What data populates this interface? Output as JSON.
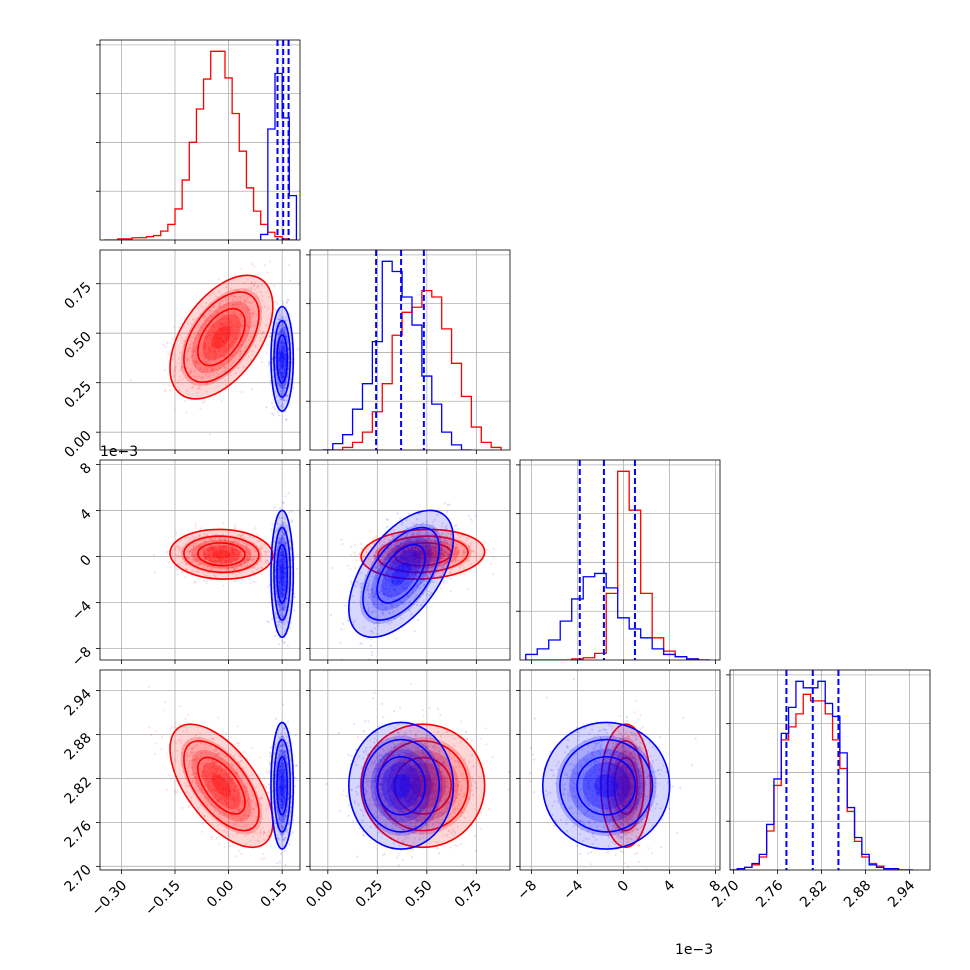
{
  "chart_data": {
    "type": "corner",
    "parameters": [
      "p0",
      "p1",
      "p2",
      "p3"
    ],
    "grid": true,
    "scale_labels": [
      "1e−3",
      "1e−3"
    ],
    "axes": {
      "p0": {
        "range": [
          -0.36,
          0.2
        ],
        "ticks": [
          -0.3,
          -0.15,
          0.0,
          0.15
        ],
        "tick_labels": [
          "−0.30",
          "−0.15",
          "0.00",
          "0.15"
        ]
      },
      "p1": {
        "range": [
          -0.09,
          0.92
        ],
        "ticks": [
          0.0,
          0.25,
          0.5,
          0.75
        ],
        "tick_labels": [
          "0.00",
          "0.25",
          "0.50",
          "0.75"
        ]
      },
      "p2": {
        "range": [
          -9.0,
          8.4
        ],
        "ticks": [
          -8,
          -4,
          0,
          4,
          8
        ],
        "tick_labels": [
          "−8",
          "−4",
          "0",
          "4",
          "8"
        ]
      },
      "p3": {
        "range": [
          2.695,
          2.968
        ],
        "ticks": [
          2.7,
          2.76,
          2.82,
          2.88,
          2.94
        ],
        "tick_labels": [
          "2.70",
          "2.76",
          "2.82",
          "2.88",
          "2.94"
        ]
      }
    },
    "series": [
      {
        "name": "",
        "color": "#ff0000",
        "means": [
          -0.02,
          0.48,
          0.2,
          2.81
        ],
        "stds": [
          0.06,
          0.13,
          0.9,
          0.035
        ],
        "correlations": {
          "p0_p1": 0.5,
          "p0_p2": -0.05,
          "p1_p2": 0.1,
          "p0_p3": -0.6,
          "p1_p3": 0.0,
          "p2_p3": 0.0
        },
        "histograms": {
          "p0": {
            "x": [
              -0.34,
              -0.32,
              -0.3,
              -0.28,
              -0.26,
              -0.24,
              -0.22,
              -0.2,
              -0.18,
              -0.16,
              -0.14,
              -0.12,
              -0.1,
              -0.08,
              -0.06,
              -0.04,
              -0.02,
              0.0,
              0.02,
              0.04,
              0.06,
              0.08,
              0.1,
              0.12,
              0.14,
              0.16,
              0.18
            ],
            "values": [
              0,
              0,
              1,
              1,
              2,
              2,
              3,
              4,
              8,
              14,
              28,
              54,
              88,
              118,
              145,
              170,
              170,
              146,
              114,
              80,
              47,
              26,
              14,
              7,
              3,
              1,
              0
            ]
          },
          "p1": {
            "x": [
              0.0,
              0.05,
              0.1,
              0.15,
              0.2,
              0.25,
              0.3,
              0.35,
              0.4,
              0.45,
              0.5,
              0.55,
              0.6,
              0.65,
              0.7,
              0.75,
              0.8,
              0.85
            ],
            "values": [
              0,
              0,
              2,
              6,
              14,
              30,
              52,
              90,
              108,
              112,
              125,
              120,
              95,
              68,
              42,
              18,
              6,
              2
            ]
          },
          "p2": {
            "x": [
              -8,
              -7,
              -6,
              -5,
              -4,
              -3,
              -2,
              -1,
              0,
              1,
              2,
              3,
              4,
              5,
              6,
              7
            ],
            "values": [
              0,
              0,
              0,
              0,
              1,
              2,
              6,
              60,
              170,
              135,
              60,
              20,
              8,
              3,
              1,
              0
            ]
          },
          "p3": {
            "x": [
              2.7,
              2.71,
              2.72,
              2.73,
              2.74,
              2.75,
              2.76,
              2.77,
              2.78,
              2.79,
              2.8,
              2.81,
              2.82,
              2.83,
              2.84,
              2.85,
              2.86,
              2.87,
              2.88,
              2.89,
              2.9,
              2.91,
              2.92,
              2.93,
              2.94
            ],
            "values": [
              0,
              1,
              2,
              4,
              10,
              30,
              65,
              100,
              110,
              120,
              135,
              130,
              130,
              120,
              100,
              78,
              45,
              22,
              10,
              5,
              3,
              1,
              1,
              0,
              0
            ]
          }
        }
      },
      {
        "name": "",
        "color": "#0000ff",
        "means": [
          0.15,
          0.37,
          -1.5,
          2.81
        ],
        "stds": [
          0.013,
          0.11,
          2.3,
          0.036
        ],
        "correlations": {
          "p0_p1": 0.0,
          "p0_p2": 0.0,
          "p1_p2": 0.55,
          "p0_p3": 0.0,
          "p1_p3": 0.0,
          "p2_p3": 0.0
        },
        "histograms": {
          "p0": {
            "x": [
              0.1,
              0.12,
              0.14,
              0.16,
              0.18
            ],
            "values": [
              5,
              100,
              150,
              110,
              40
            ]
          },
          "p1": {
            "x": [
              0.0,
              0.05,
              0.1,
              0.15,
              0.2,
              0.25,
              0.3,
              0.35,
              0.4,
              0.45,
              0.5,
              0.55,
              0.6,
              0.65,
              0.7
            ],
            "values": [
              0,
              5,
              12,
              32,
              52,
              85,
              148,
              140,
              120,
              98,
              58,
              36,
              14,
              4,
              0
            ]
          },
          "p2": {
            "x": [
              -8,
              -7,
              -6,
              -5,
              -4,
              -3,
              -2,
              -1,
              0,
              1,
              2,
              3,
              4,
              5,
              6,
              7
            ],
            "values": [
              5,
              10,
              18,
              35,
              55,
              75,
              78,
              65,
              38,
              28,
              20,
              10,
              5,
              3,
              1,
              0
            ]
          },
          "p3": {
            "x": [
              2.7,
              2.71,
              2.72,
              2.73,
              2.74,
              2.75,
              2.76,
              2.77,
              2.78,
              2.79,
              2.8,
              2.81,
              2.82,
              2.83,
              2.84,
              2.85,
              2.86,
              2.87,
              2.88,
              2.89,
              2.9,
              2.91,
              2.92,
              2.93,
              2.94
            ],
            "values": [
              0,
              1,
              2,
              5,
              12,
              35,
              70,
              105,
              125,
              145,
              140,
              140,
              145,
              128,
              118,
              90,
              48,
              25,
              12,
              4,
              2,
              1,
              1,
              0,
              0
            ]
          }
        }
      }
    ],
    "quantile_lines": {
      "p0": [
        0.137,
        0.153,
        0.168
      ],
      "p1": [
        0.244,
        0.37,
        0.485
      ],
      "p2": [
        -3.8,
        -1.7,
        1.0
      ],
      "p3": [
        2.772,
        2.808,
        2.843
      ]
    }
  }
}
